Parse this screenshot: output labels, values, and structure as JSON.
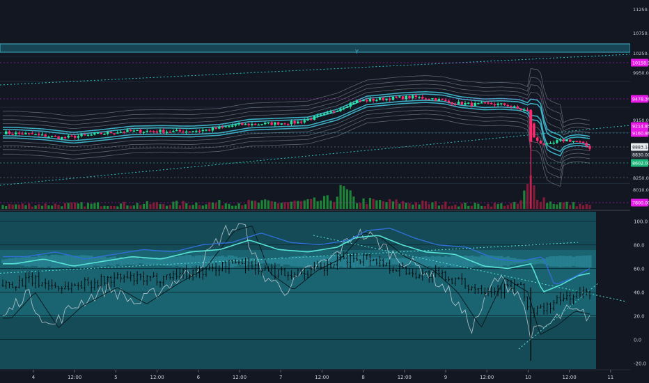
{
  "colors": {
    "background": "#131722",
    "bull": "#26e8a0",
    "bear": "#ff2a6d",
    "band": "#3fb3c9",
    "band_outer": "#9aa3b0",
    "channel_line": "#2ec4c4",
    "zone_fill": "#1e6b80",
    "oscillator_bg": "#155a66",
    "magenta_label": "#e619e6",
    "volume_bull": "#1f8f3a",
    "volume_bear": "#8f1e3c",
    "axis_text": "#c9ccd4"
  },
  "price_axis": {
    "ticks": [
      "11250.00",
      "10750.00",
      "10250.00",
      "9950.00",
      "9150.00",
      "8250.00",
      "8010.00"
    ],
    "labels": [
      {
        "text": "10158.96",
        "style": "magenta"
      },
      {
        "text": "9478.36",
        "style": "magenta"
      },
      {
        "text": "9214.85",
        "style": "magenta"
      },
      {
        "text": "9160.86",
        "style": "magenta"
      },
      {
        "text": "8883.14",
        "style": "white"
      },
      {
        "text": "8830.00",
        "style": "dark"
      },
      {
        "text": "8602.00",
        "style": "green"
      },
      {
        "text": "7800.00",
        "style": "magenta"
      }
    ]
  },
  "oscillator_axis": {
    "ticks": [
      "100.0",
      "80.0",
      "60.0",
      "40.0",
      "20.0",
      "0.0",
      "-20.0"
    ]
  },
  "time_axis": {
    "ticks": [
      "4",
      "12:00",
      "5",
      "12:00",
      "6",
      "12:00",
      "7",
      "12:00",
      "8",
      "12:00",
      "9",
      "12:00",
      "10",
      "12:00",
      "11"
    ]
  },
  "annotations": {
    "marker": "Y"
  },
  "chart_data": {
    "type": "candlestick",
    "title": "",
    "price_ylim": [
      7800,
      11400
    ],
    "oscillator_ylim": [
      -25,
      108
    ],
    "price_path": [
      [
        0,
        9150
      ],
      [
        0.05,
        9120
      ],
      [
        0.1,
        9060
      ],
      [
        0.15,
        9110
      ],
      [
        0.2,
        9170
      ],
      [
        0.25,
        9180
      ],
      [
        0.3,
        9170
      ],
      [
        0.35,
        9200
      ],
      [
        0.4,
        9290
      ],
      [
        0.45,
        9310
      ],
      [
        0.5,
        9330
      ],
      [
        0.55,
        9470
      ],
      [
        0.58,
        9610
      ],
      [
        0.6,
        9700
      ],
      [
        0.63,
        9730
      ],
      [
        0.66,
        9760
      ],
      [
        0.7,
        9780
      ],
      [
        0.73,
        9760
      ],
      [
        0.76,
        9690
      ],
      [
        0.8,
        9650
      ],
      [
        0.83,
        9660
      ],
      [
        0.86,
        9640
      ],
      [
        0.88,
        9560
      ],
      [
        0.895,
        9540
      ],
      [
        0.905,
        9050
      ],
      [
        0.915,
        8980
      ],
      [
        0.93,
        8920
      ],
      [
        0.945,
        9000
      ],
      [
        0.96,
        9020
      ],
      [
        0.98,
        8990
      ],
      [
        1.0,
        8883.14
      ]
    ],
    "volume_path": [
      [
        0,
        6
      ],
      [
        0.2,
        7
      ],
      [
        0.4,
        9
      ],
      [
        0.52,
        10
      ],
      [
        0.56,
        14
      ],
      [
        0.58,
        28
      ],
      [
        0.6,
        12
      ],
      [
        0.8,
        6
      ],
      [
        0.88,
        7
      ],
      [
        0.9,
        40
      ],
      [
        0.91,
        22
      ],
      [
        0.93,
        10
      ],
      [
        1.0,
        5
      ]
    ],
    "oscillator_path": [
      [
        0,
        46
      ],
      [
        0.05,
        50
      ],
      [
        0.1,
        44
      ],
      [
        0.15,
        48
      ],
      [
        0.2,
        52
      ],
      [
        0.25,
        50
      ],
      [
        0.3,
        56
      ],
      [
        0.35,
        58
      ],
      [
        0.4,
        66
      ],
      [
        0.45,
        58
      ],
      [
        0.5,
        56
      ],
      [
        0.55,
        60
      ],
      [
        0.58,
        68
      ],
      [
        0.62,
        70
      ],
      [
        0.66,
        62
      ],
      [
        0.7,
        56
      ],
      [
        0.75,
        54
      ],
      [
        0.8,
        44
      ],
      [
        0.84,
        42
      ],
      [
        0.88,
        46
      ],
      [
        0.9,
        22
      ],
      [
        0.93,
        28
      ],
      [
        0.96,
        36
      ],
      [
        1.0,
        40
      ]
    ],
    "stoch_path": [
      [
        0,
        18
      ],
      [
        0.04,
        40
      ],
      [
        0.08,
        10
      ],
      [
        0.12,
        28
      ],
      [
        0.18,
        44
      ],
      [
        0.23,
        30
      ],
      [
        0.28,
        46
      ],
      [
        0.33,
        60
      ],
      [
        0.38,
        92
      ],
      [
        0.41,
        96
      ],
      [
        0.44,
        56
      ],
      [
        0.48,
        42
      ],
      [
        0.52,
        58
      ],
      [
        0.56,
        68
      ],
      [
        0.6,
        90
      ],
      [
        0.63,
        86
      ],
      [
        0.67,
        70
      ],
      [
        0.72,
        58
      ],
      [
        0.76,
        40
      ],
      [
        0.8,
        10
      ],
      [
        0.84,
        52
      ],
      [
        0.88,
        40
      ],
      [
        0.9,
        4
      ],
      [
        0.93,
        12
      ],
      [
        0.96,
        24
      ],
      [
        1.0,
        20
      ]
    ]
  }
}
